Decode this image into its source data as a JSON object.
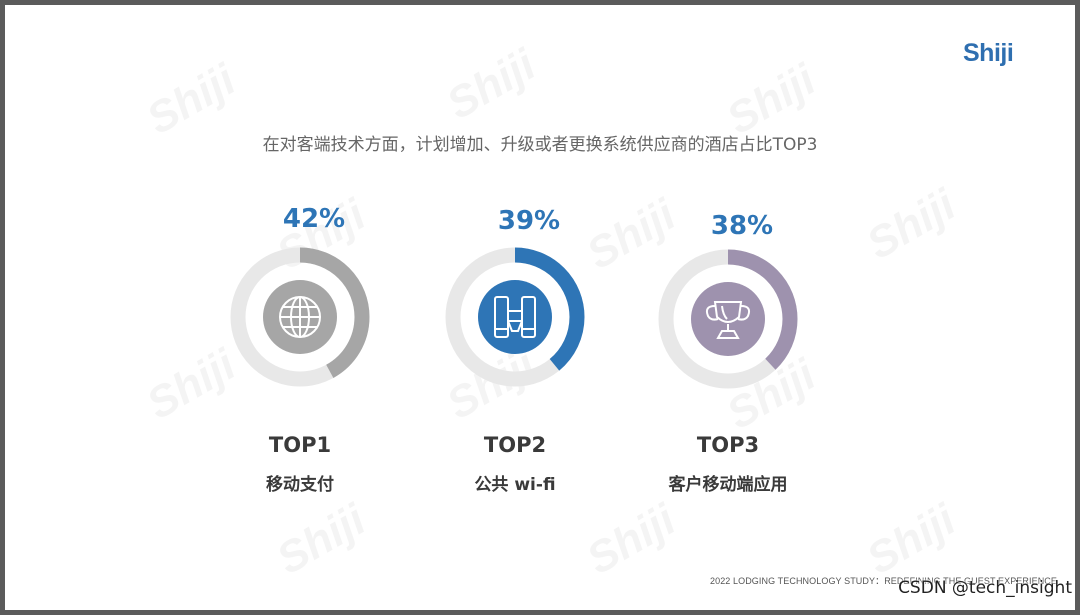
{
  "brand": {
    "logo_text": "Shiji",
    "watermark_text": "Shiji"
  },
  "subtitle": "在对客端技术方面，计划增加、升级或者更换系统供应商的酒店占比TOP3",
  "chart_data": {
    "type": "donut",
    "items": [
      {
        "rank": "TOP1",
        "label": "移动支付",
        "value": 42,
        "value_label": "42%",
        "color": "#a6a6a6",
        "icon": "globe-icon"
      },
      {
        "rank": "TOP2",
        "label": "公共 wi-fi",
        "value": 39,
        "value_label": "39%",
        "color": "#2e75b6",
        "icon": "binoculars-icon"
      },
      {
        "rank": "TOP3",
        "label": "客户移动端应用",
        "value": 38,
        "value_label": "38%",
        "color": "#9e92ae",
        "icon": "trophy-icon"
      }
    ],
    "track_color": "#e8e8e8",
    "value_text_color": "#2e75b6"
  },
  "footer": "2022 LODGING TECHNOLOGY STUDY：REDEFINING THE GUEST EXPERIENCE",
  "credit": "CSDN @tech_insight"
}
